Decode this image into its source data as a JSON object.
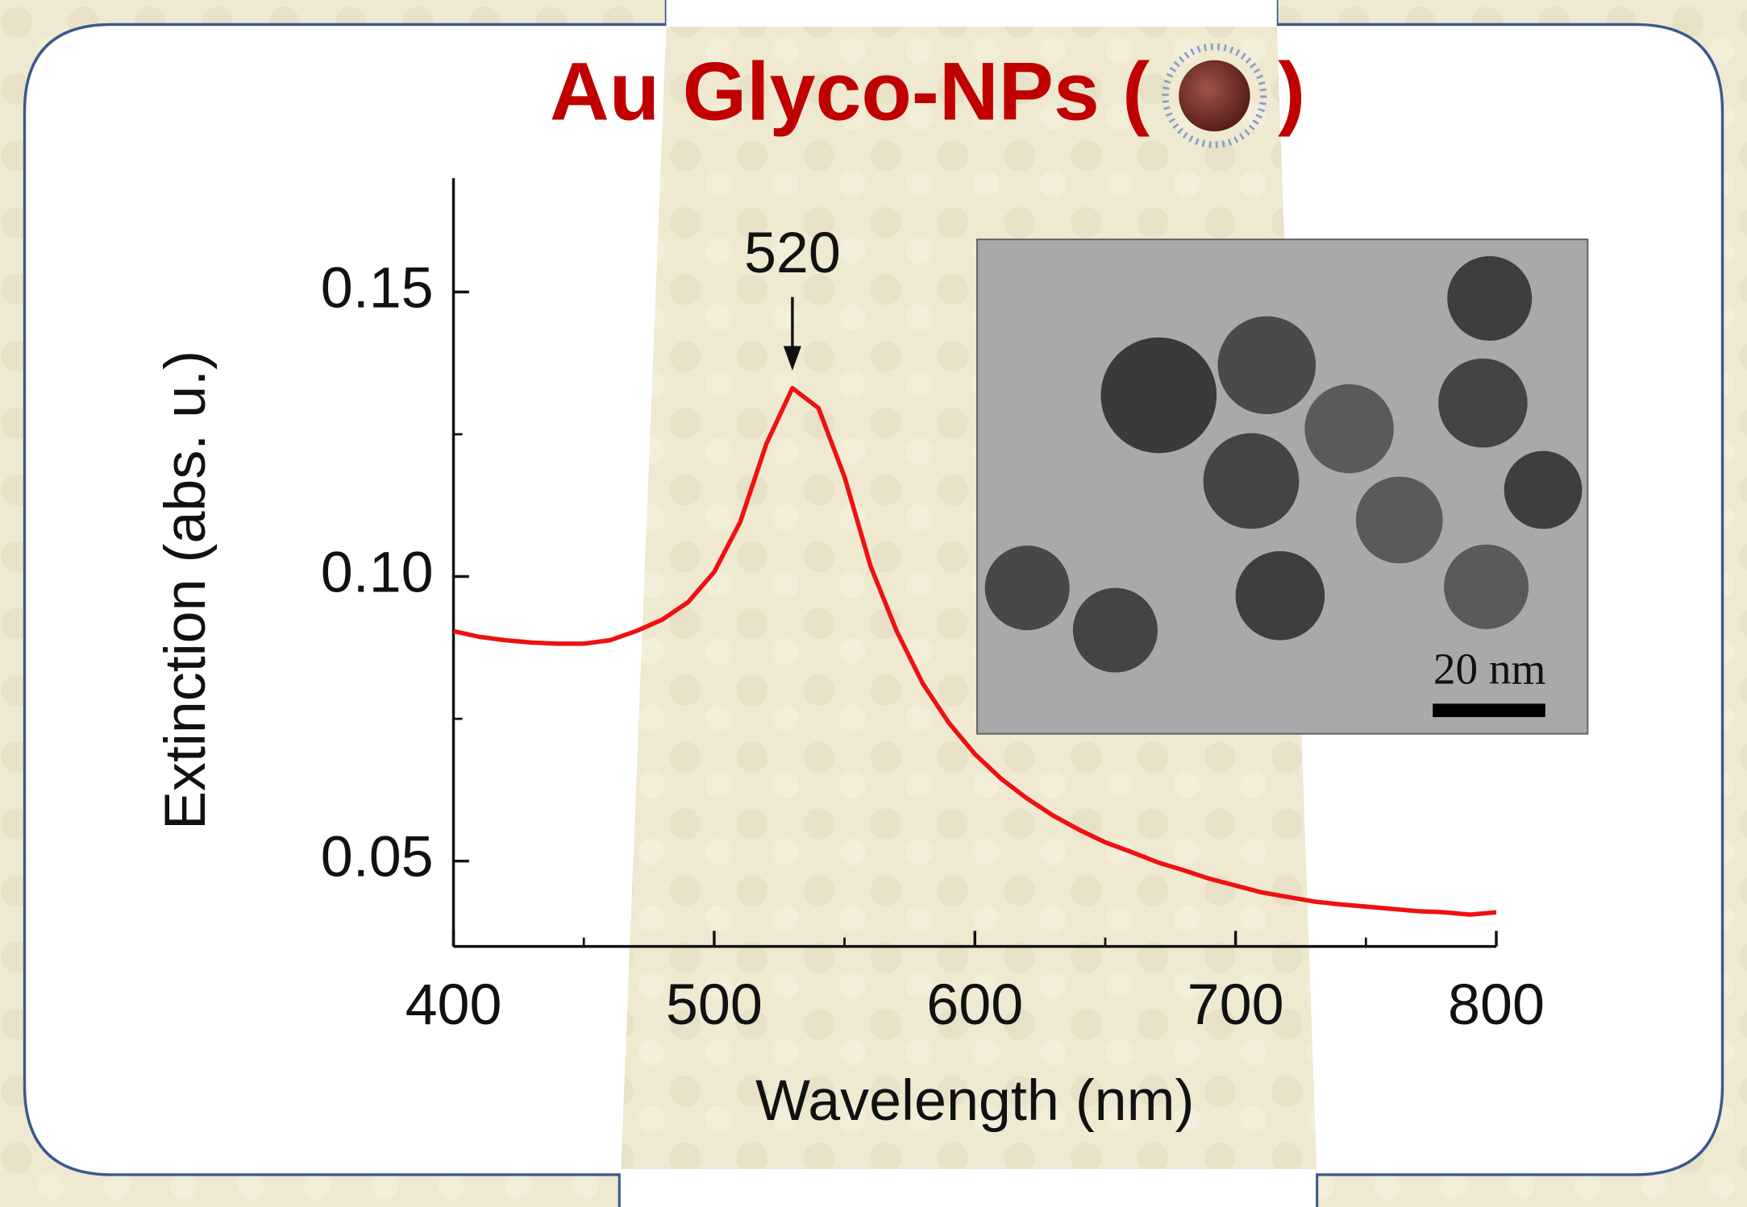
{
  "chart_data": {
    "type": "line",
    "title": "Au Glyco-NPs (",
    "title_close": ")",
    "xlabel": "Wavelength (nm)",
    "ylabel": "Extinction (abs. u.)",
    "x": [
      400,
      410,
      420,
      430,
      440,
      450,
      460,
      470,
      480,
      490,
      500,
      510,
      520,
      530,
      540,
      550,
      560,
      570,
      580,
      590,
      600,
      610,
      620,
      630,
      640,
      650,
      660,
      670,
      680,
      690,
      700,
      710,
      720,
      730,
      740,
      750,
      760,
      770,
      780,
      790,
      800
    ],
    "values": [
      0.0904,
      0.0894,
      0.0888,
      0.0884,
      0.0882,
      0.0882,
      0.0888,
      0.0904,
      0.0924,
      0.0955,
      0.1008,
      0.1096,
      0.1233,
      0.1331,
      0.1296,
      0.1175,
      0.1018,
      0.0904,
      0.0812,
      0.0743,
      0.0688,
      0.0645,
      0.061,
      0.058,
      0.0555,
      0.0533,
      0.0516,
      0.0498,
      0.0484,
      0.0469,
      0.0457,
      0.0445,
      0.0437,
      0.0429,
      0.0424,
      0.042,
      0.0416,
      0.0412,
      0.041,
      0.0406,
      0.041
    ],
    "color": "#ee1111",
    "xlim": [
      400,
      800
    ],
    "xticks": [
      400,
      500,
      600,
      700,
      800
    ],
    "xminorticks": [
      450,
      550,
      650,
      750
    ],
    "ylim": [
      0.035,
      0.17
    ],
    "yticks": [
      {
        "value": 0.05,
        "label": "0.05"
      },
      {
        "value": 0.1,
        "label": "0.10"
      },
      {
        "value": 0.15,
        "label": "0.15"
      }
    ],
    "yminorticks": [
      0.075,
      0.125
    ],
    "annotation": {
      "text": "520",
      "x": 530,
      "y": 0.1362
    },
    "inset_scale_label": "20 nm"
  }
}
